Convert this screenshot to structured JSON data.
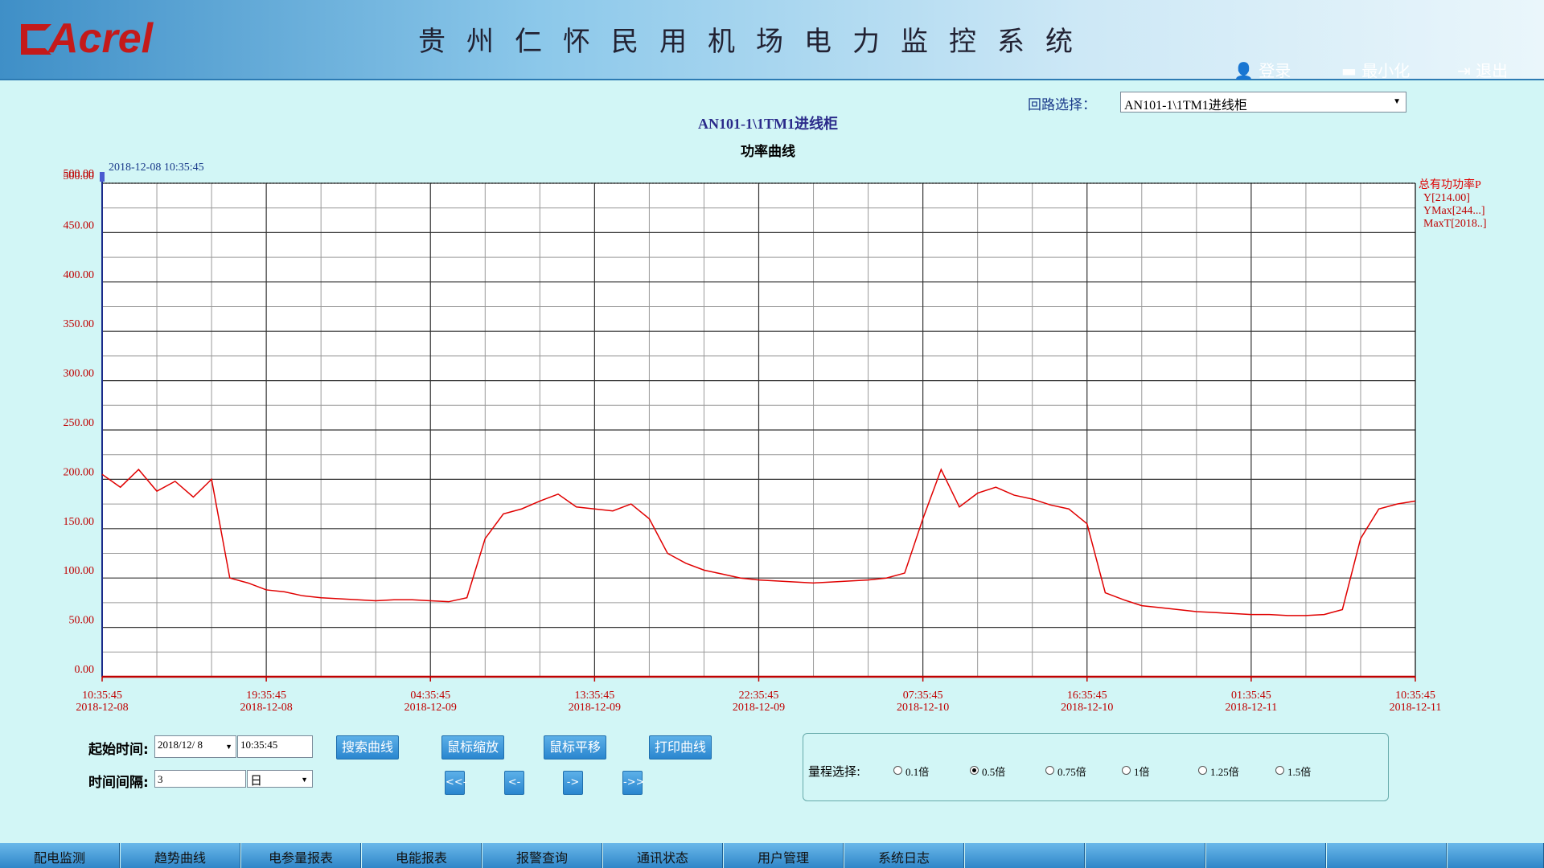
{
  "header": {
    "logo": "Acrel",
    "title": "贵州仁怀民用机场电力监控系统",
    "login": "登录",
    "minimize": "最小化",
    "logout": "退出"
  },
  "loop_select": {
    "label": "回路选择：",
    "value": "AN101-1\\1TM1进线柜"
  },
  "chart_data": {
    "type": "line",
    "title": "AN101-1\\1TM1进线柜",
    "subtitle": "功率曲线",
    "x": [
      "2018-12-08 10:35:45",
      "2018-12-08 11:35:45",
      "2018-12-08 12:35:45",
      "2018-12-08 13:35:45",
      "2018-12-08 14:35:45",
      "2018-12-08 15:35:45",
      "2018-12-08 16:35:45",
      "2018-12-08 17:35:45",
      "2018-12-08 18:35:45",
      "2018-12-08 19:35:45",
      "2018-12-08 20:35:45",
      "2018-12-08 21:35:45",
      "2018-12-08 22:35:45",
      "2018-12-08 23:35:45",
      "2018-12-09 00:35:45",
      "2018-12-09 01:35:45",
      "2018-12-09 02:35:45",
      "2018-12-09 03:35:45",
      "2018-12-09 04:35:45",
      "2018-12-09 05:35:45",
      "2018-12-09 06:35:45",
      "2018-12-09 07:35:45",
      "2018-12-09 08:35:45",
      "2018-12-09 09:35:45",
      "2018-12-09 10:35:45",
      "2018-12-09 11:35:45",
      "2018-12-09 12:35:45",
      "2018-12-09 13:35:45",
      "2018-12-09 14:35:45",
      "2018-12-09 15:35:45",
      "2018-12-09 16:35:45",
      "2018-12-09 17:35:45",
      "2018-12-09 18:35:45",
      "2018-12-09 19:35:45",
      "2018-12-09 20:35:45",
      "2018-12-09 21:35:45",
      "2018-12-09 22:35:45",
      "2018-12-09 23:35:45",
      "2018-12-10 00:35:45",
      "2018-12-10 01:35:45",
      "2018-12-10 02:35:45",
      "2018-12-10 03:35:45",
      "2018-12-10 04:35:45",
      "2018-12-10 05:35:45",
      "2018-12-10 06:35:45",
      "2018-12-10 07:35:45",
      "2018-12-10 08:35:45",
      "2018-12-10 09:35:45",
      "2018-12-10 10:35:45",
      "2018-12-10 11:35:45",
      "2018-12-10 12:35:45",
      "2018-12-10 13:35:45",
      "2018-12-10 14:35:45",
      "2018-12-10 15:35:45",
      "2018-12-10 16:35:45",
      "2018-12-10 17:35:45",
      "2018-12-10 18:35:45",
      "2018-12-10 19:35:45",
      "2018-12-10 20:35:45",
      "2018-12-10 21:35:45",
      "2018-12-10 22:35:45",
      "2018-12-10 23:35:45",
      "2018-12-11 00:35:45",
      "2018-12-11 01:35:45",
      "2018-12-11 02:35:45",
      "2018-12-11 03:35:45",
      "2018-12-11 04:35:45",
      "2018-12-11 05:35:45",
      "2018-12-11 06:35:45",
      "2018-12-11 07:35:45",
      "2018-12-11 08:35:45",
      "2018-12-11 09:35:45",
      "2018-12-11 10:35:45"
    ],
    "series": [
      {
        "name": "总有功功率P",
        "color": "#e00000",
        "values": [
          205,
          192,
          210,
          188,
          198,
          182,
          200,
          100,
          95,
          88,
          86,
          82,
          80,
          79,
          78,
          77,
          78,
          78,
          77,
          76,
          80,
          140,
          165,
          170,
          178,
          185,
          172,
          170,
          168,
          175,
          160,
          125,
          115,
          108,
          104,
          100,
          98,
          97,
          96,
          95,
          96,
          97,
          98,
          100,
          105,
          160,
          210,
          172,
          186,
          192,
          184,
          180,
          174,
          170,
          155,
          85,
          78,
          72,
          70,
          68,
          66,
          65,
          64,
          63,
          63,
          62,
          62,
          63,
          68,
          140,
          170,
          175,
          178
        ]
      }
    ],
    "xlim": [
      "2018-12-08 10:35:45",
      "2018-12-11 10:35:45"
    ],
    "xticks": [
      {
        "value": "2018-12-08 10:35:45",
        "label": "10:35:45\n2018-12-08"
      },
      {
        "value": "2018-12-08 19:35:45",
        "label": "19:35:45\n2018-12-08"
      },
      {
        "value": "2018-12-09 04:35:45",
        "label": "04:35:45\n2018-12-09"
      },
      {
        "value": "2018-12-09 13:35:45",
        "label": "13:35:45\n2018-12-09"
      },
      {
        "value": "2018-12-09 22:35:45",
        "label": "22:35:45\n2018-12-09"
      },
      {
        "value": "2018-12-10 07:35:45",
        "label": "07:35:45\n2018-12-10"
      },
      {
        "value": "2018-12-10 16:35:45",
        "label": "16:35:45\n2018-12-10"
      },
      {
        "value": "2018-12-11 01:35:45",
        "label": "01:35:45\n2018-12-11"
      },
      {
        "value": "2018-12-11 10:35:45",
        "label": "10:35:45\n2018-12-11"
      }
    ],
    "ylim": [
      0,
      500
    ],
    "yticks": [
      {
        "value": 0,
        "label": "0.00"
      },
      {
        "value": 50,
        "label": "50.00"
      },
      {
        "value": 100,
        "label": "100.00"
      },
      {
        "value": 150,
        "label": "150.00"
      },
      {
        "value": 200,
        "label": "200.00"
      },
      {
        "value": 250,
        "label": "250.00"
      },
      {
        "value": 300,
        "label": "300.00"
      },
      {
        "value": 350,
        "label": "350.00"
      },
      {
        "value": 400,
        "label": "400.00"
      },
      {
        "value": 450,
        "label": "450.00"
      },
      {
        "value": 500,
        "label": "500.00"
      }
    ],
    "grid": true,
    "cursor": {
      "time": "2018-12-08 10:35:45",
      "value_label": "500.00"
    },
    "legend_info": [
      "Y[214.00]",
      "YMax[244...]",
      "MaxT[2018..]"
    ]
  },
  "controls": {
    "start_label": "起始时间:",
    "start_date": "2018/12/ 8",
    "start_time": "10:35:45",
    "interval_label": "时间间隔:",
    "interval": "3",
    "interval_unit": "日",
    "buttons": [
      "搜索曲线",
      "鼠标缩放",
      "鼠标平移",
      "打印曲线"
    ],
    "nav": [
      "<<-",
      "<-",
      "->",
      "->>"
    ]
  },
  "range": {
    "label": "量程选择:",
    "options": [
      "0.1倍",
      "0.5倍",
      "0.75倍",
      "1倍",
      "1.25倍",
      "1.5倍"
    ],
    "selected": 1
  },
  "tabs": [
    "配电监测",
    "趋势曲线",
    "电参量报表",
    "电能报表",
    "报警查询",
    "通讯状态",
    "用户管理",
    "系统日志"
  ]
}
